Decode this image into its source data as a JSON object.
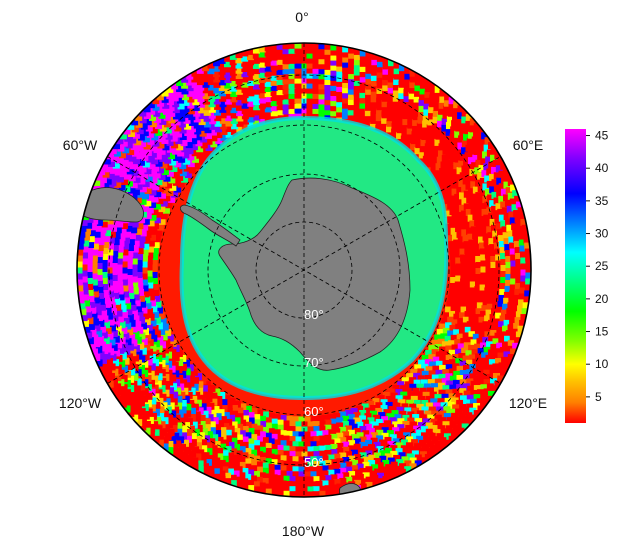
{
  "map": {
    "projection": "south-polar-stereographic",
    "longitude_labels": {
      "top": "0°",
      "upper_left": "60°W",
      "upper_right": "60°E",
      "lower_left": "120°W",
      "lower_right": "120°E",
      "bottom": "180°W"
    },
    "latitude_labels": [
      "80°",
      "70°",
      "60°",
      "50°"
    ],
    "land_color": "#808080",
    "grid_style": "dashed"
  },
  "colorbar": {
    "ticks": [
      "45",
      "40",
      "35",
      "30",
      "25",
      "20",
      "15",
      "10",
      "5"
    ],
    "range": [
      1,
      46
    ],
    "colors_top_to_bottom": [
      "#ff00ff",
      "#8000ff",
      "#0000ff",
      "#0080ff",
      "#00ffff",
      "#00ff80",
      "#00ff00",
      "#80ff00",
      "#ffff00",
      "#ffc000",
      "#ff8000",
      "#ff0000"
    ]
  }
}
